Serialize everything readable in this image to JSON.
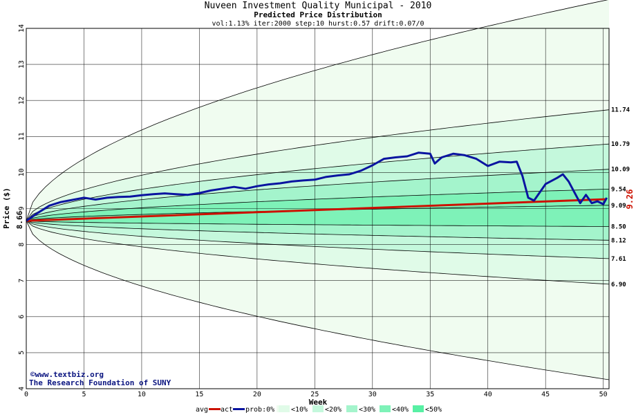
{
  "chart_data": {
    "type": "line",
    "title": "Nuveen Investment Quality Municipal - 2010",
    "subtitle": "Predicted Price Distribution",
    "params": "vol:1.13% iter:2000 step:10 hurst:0.57 drift:0.07/0",
    "xlabel": "Week",
    "ylabel": "Price ($)",
    "xlim": [
      0,
      50.5
    ],
    "ylim": [
      4,
      14
    ],
    "x_ticks": [
      0,
      5,
      10,
      15,
      20,
      25,
      30,
      35,
      40,
      45,
      50
    ],
    "y_ticks": [
      4,
      5,
      6,
      7,
      8,
      9,
      10,
      11,
      12,
      13,
      14
    ],
    "grid": true,
    "start_label": "8.66",
    "current_label": "9.26",
    "right_labels": [
      "11.74",
      "10.79",
      "10.09",
      "9.54",
      "9.09",
      "8.50",
      "8.12",
      "7.61",
      "6.90"
    ],
    "band_colors": [
      "#f0fcf0",
      "#e0fbe8",
      "#c4f8dc",
      "#a4f4cc",
      "#7ef2b8",
      "#58f0a4"
    ],
    "percentile_curves": [
      {
        "start": 8.66,
        "end": 14.8
      },
      {
        "start": 8.66,
        "end": 11.74
      },
      {
        "start": 8.66,
        "end": 10.79
      },
      {
        "start": 8.66,
        "end": 10.09
      },
      {
        "start": 8.66,
        "end": 9.54
      },
      {
        "start": 8.66,
        "end": 9.09
      },
      {
        "start": 8.66,
        "end": 8.5
      },
      {
        "start": 8.66,
        "end": 8.12
      },
      {
        "start": 8.66,
        "end": 7.61
      },
      {
        "start": 8.66,
        "end": 6.9
      },
      {
        "start": 8.66,
        "end": 4.25
      }
    ],
    "series": [
      {
        "name": "avg",
        "color": "#cc1100",
        "x": [
          0,
          50.3
        ],
        "values": [
          8.66,
          9.26
        ]
      },
      {
        "name": "act",
        "color": "#0a14a0",
        "x": [
          0,
          1,
          2,
          3,
          4,
          5,
          6,
          7,
          8,
          9,
          10,
          11,
          12,
          13,
          14,
          15,
          16,
          17,
          18,
          19,
          20,
          21,
          22,
          23,
          24,
          25,
          26,
          27,
          28,
          29,
          30,
          31,
          32,
          33,
          34,
          35,
          35.4,
          36,
          37,
          38,
          39,
          40,
          41,
          42,
          42.5,
          43,
          43.5,
          44,
          45,
          46,
          46.5,
          47,
          47.5,
          48,
          48.5,
          49,
          49.5,
          50,
          50.3
        ],
        "values": [
          8.66,
          8.88,
          9.08,
          9.18,
          9.24,
          9.3,
          9.25,
          9.3,
          9.32,
          9.33,
          9.37,
          9.4,
          9.42,
          9.4,
          9.38,
          9.43,
          9.5,
          9.55,
          9.6,
          9.55,
          9.62,
          9.67,
          9.7,
          9.75,
          9.78,
          9.8,
          9.88,
          9.92,
          9.95,
          10.05,
          10.2,
          10.38,
          10.42,
          10.45,
          10.55,
          10.52,
          10.25,
          10.42,
          10.52,
          10.48,
          10.38,
          10.18,
          10.3,
          10.28,
          10.3,
          9.9,
          9.3,
          9.22,
          9.68,
          9.85,
          9.95,
          9.75,
          9.45,
          9.15,
          9.38,
          9.15,
          9.2,
          9.12,
          9.3
        ]
      }
    ],
    "legend": [
      "avg",
      "act",
      "prob:0%",
      "<10%",
      "<20%",
      "<30%",
      "<40%",
      "<50%"
    ],
    "legend_position": "bottom",
    "credits": [
      "©www.textbiz.org",
      "The Research Foundation of SUNY"
    ]
  }
}
